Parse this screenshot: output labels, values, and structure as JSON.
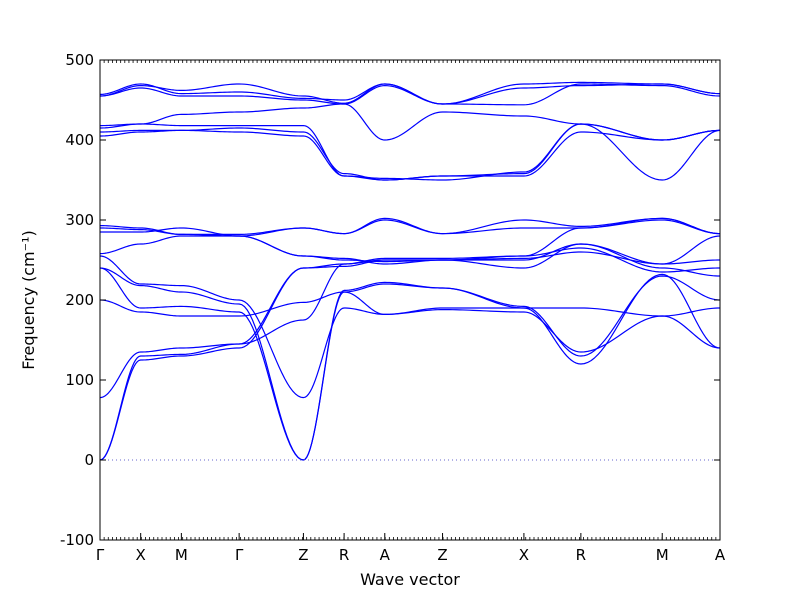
{
  "chart_data": {
    "type": "line",
    "title": "",
    "xlabel": "Wave vector",
    "ylabel": "Frequency (cm⁻¹)",
    "ylim": [
      -100,
      500
    ],
    "yticks": [
      -100,
      0,
      100,
      200,
      300,
      400,
      500
    ],
    "xticks": [
      "Γ",
      "X",
      "M",
      "Γ",
      "Z",
      "R",
      "A",
      "Z",
      "X",
      "R",
      "M",
      "A"
    ],
    "xtick_positions": [
      0,
      0.5,
      1.0,
      1.71,
      2.5,
      3.0,
      3.5,
      4.21,
      5.21,
      5.91,
      6.91,
      7.62
    ],
    "series_color": "#0000ff",
    "zero_line_color": "#6666cc",
    "series": [
      {
        "values": [
          0,
          125,
          130,
          140,
          240,
          242,
          250,
          250,
          250,
          270,
          240,
          230,
          250
        ]
      },
      {
        "values": [
          0,
          130,
          132,
          145,
          240,
          245,
          252,
          252,
          255,
          265,
          235,
          240,
          252
        ]
      },
      {
        "values": [
          78,
          135,
          140,
          145,
          175,
          245,
          250,
          250,
          252,
          260,
          245,
          250,
          250
        ]
      },
      {
        "values": [
          200,
          185,
          180,
          180,
          197,
          210,
          220,
          215,
          192,
          130,
          230,
          200,
          210
        ]
      },
      {
        "values": [
          240,
          190,
          192,
          185,
          0,
          212,
          222,
          215,
          190,
          120,
          232,
          140,
          212
        ]
      },
      {
        "values": [
          240,
          218,
          210,
          195,
          0,
          210,
          182,
          188,
          185,
          135,
          180,
          140,
          188
        ]
      },
      {
        "values": [
          255,
          220,
          218,
          200,
          78,
          190,
          182,
          190,
          190,
          190,
          180,
          190,
          188
        ]
      },
      {
        "values": [
          258,
          270,
          280,
          280,
          255,
          252,
          245,
          250,
          240,
          270,
          245,
          280,
          252
        ]
      },
      {
        "values": [
          285,
          285,
          290,
          280,
          255,
          250,
          248,
          250,
          255,
          290,
          300,
          283,
          283
        ]
      },
      {
        "values": [
          290,
          288,
          282,
          280,
          290,
          283,
          300,
          283,
          290,
          290,
          302,
          283,
          283
        ]
      },
      {
        "values": [
          293,
          290,
          282,
          282,
          290,
          283,
          302,
          283,
          300,
          292,
          302,
          283,
          283
        ]
      },
      {
        "values": [
          405,
          410,
          412,
          410,
          405,
          355,
          350,
          355,
          355,
          410,
          400,
          412,
          355
        ]
      },
      {
        "values": [
          410,
          412,
          412,
          415,
          410,
          358,
          350,
          355,
          358,
          420,
          350,
          412,
          358
        ]
      },
      {
        "values": [
          415,
          420,
          418,
          418,
          418,
          355,
          352,
          350,
          360,
          420,
          400,
          412,
          355
        ]
      },
      {
        "values": [
          418,
          420,
          432,
          435,
          440,
          445,
          400,
          435,
          430,
          420,
          400,
          412,
          433
        ]
      },
      {
        "values": [
          455,
          465,
          455,
          455,
          450,
          445,
          468,
          445,
          465,
          468,
          470,
          458,
          445
        ]
      },
      {
        "values": [
          457,
          470,
          458,
          460,
          452,
          450,
          470,
          445,
          470,
          472,
          470,
          458,
          446
        ]
      },
      {
        "values": [
          455,
          468,
          462,
          470,
          455,
          446,
          470,
          445,
          444,
          470,
          468,
          455,
          445
        ]
      }
    ]
  }
}
